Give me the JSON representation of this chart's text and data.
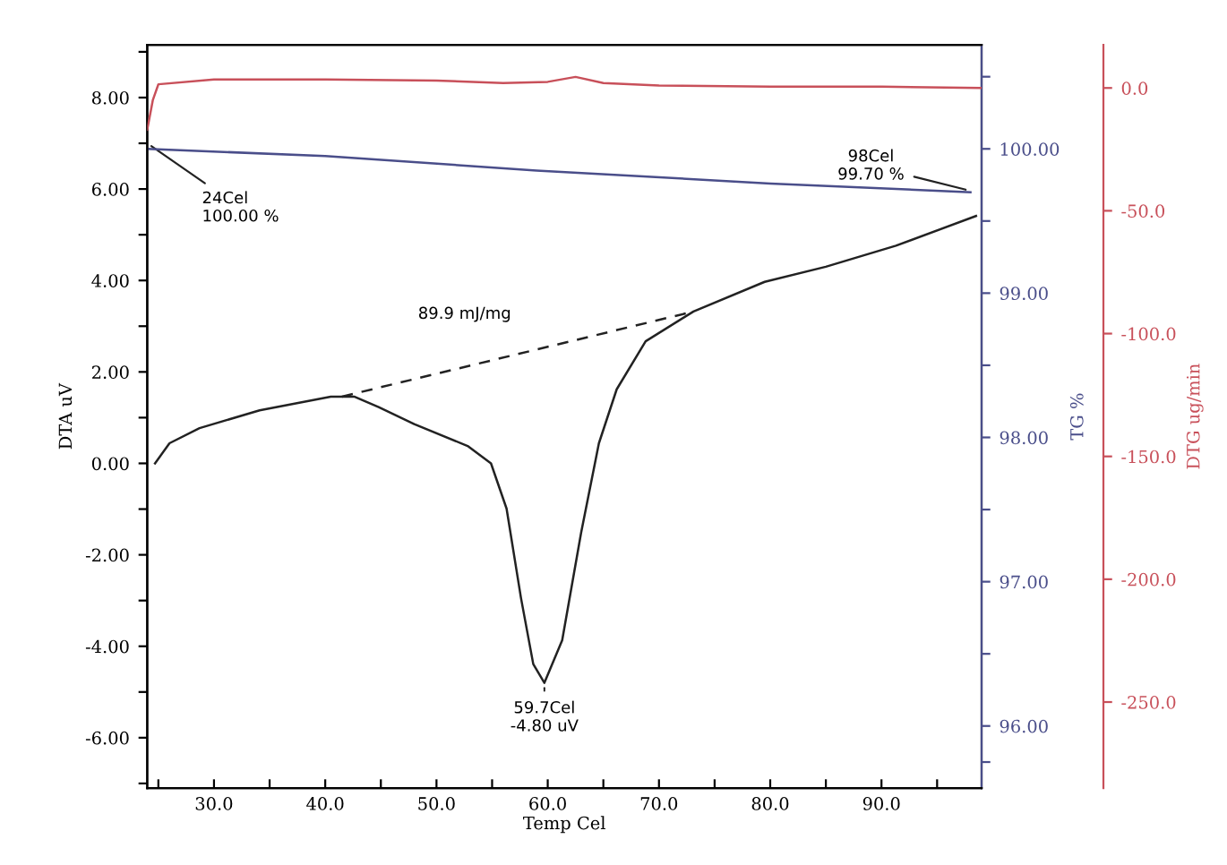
{
  "chart_data": {
    "type": "line",
    "xlabel": "Temp Cel",
    "ylabel": "DTA uV",
    "y2label": "TG %",
    "y3label": "DTG ug/min",
    "xlim": [
      24,
      99
    ],
    "xticks": [
      {
        "value": 25,
        "label": null
      },
      {
        "value": 30,
        "label": "30.0"
      },
      {
        "value": 35,
        "label": null
      },
      {
        "value": 40,
        "label": "40.0"
      },
      {
        "value": 45,
        "label": null
      },
      {
        "value": 50,
        "label": "50.0"
      },
      {
        "value": 55,
        "label": null
      },
      {
        "value": 60,
        "label": "60.0"
      },
      {
        "value": 65,
        "label": null
      },
      {
        "value": 70,
        "label": "70.0"
      },
      {
        "value": 75,
        "label": null
      },
      {
        "value": 80,
        "label": "80.0"
      },
      {
        "value": 85,
        "label": null
      },
      {
        "value": 90,
        "label": "90.0"
      },
      {
        "value": 95,
        "label": null
      }
    ],
    "ylim": [
      -7.1,
      9.15
    ],
    "yticks": [
      {
        "value": -7,
        "label": null
      },
      {
        "value": -6,
        "label": "-6.00"
      },
      {
        "value": -5,
        "label": null
      },
      {
        "value": -4,
        "label": "-4.00"
      },
      {
        "value": -3,
        "label": null
      },
      {
        "value": -2,
        "label": "-2.00"
      },
      {
        "value": -1,
        "label": null
      },
      {
        "value": 0,
        "label": "0.00"
      },
      {
        "value": 1,
        "label": null
      },
      {
        "value": 2,
        "label": "2.00"
      },
      {
        "value": 3,
        "label": null
      },
      {
        "value": 4,
        "label": "4.00"
      },
      {
        "value": 5,
        "label": null
      },
      {
        "value": 6,
        "label": "6.00"
      },
      {
        "value": 7,
        "label": null
      },
      {
        "value": 8,
        "label": "8.00"
      },
      {
        "value": 9,
        "label": null
      }
    ],
    "y2lim": [
      95.57,
      100.72
    ],
    "y2ticks": [
      {
        "value": 95.75,
        "label": null
      },
      {
        "value": 96,
        "label": "96.00"
      },
      {
        "value": 96.5,
        "label": null
      },
      {
        "value": 97,
        "label": "97.00"
      },
      {
        "value": 97.5,
        "label": null
      },
      {
        "value": 98,
        "label": "98.00"
      },
      {
        "value": 98.5,
        "label": null
      },
      {
        "value": 99,
        "label": "99.00"
      },
      {
        "value": 99.5,
        "label": null
      },
      {
        "value": 100,
        "label": "100.00"
      },
      {
        "value": 100.5,
        "label": null
      }
    ],
    "y3lim": [
      -285,
      17.5
    ],
    "y3ticks": [
      {
        "value": -250,
        "label": "-250.0"
      },
      {
        "value": -200,
        "label": "-200.0"
      },
      {
        "value": -150,
        "label": "-150.0"
      },
      {
        "value": -100,
        "label": "-100.0"
      },
      {
        "value": -50,
        "label": "-50.0"
      },
      {
        "value": 0,
        "label": "0.0"
      }
    ],
    "series": [
      {
        "color": "#222222",
        "axis": "y",
        "line_style": "solid",
        "x": [
          24.7,
          26.0,
          28.7,
          34.1,
          40.5,
          42.6,
          44.8,
          48.0,
          52.8,
          54.9,
          56.3,
          57.6,
          58.7,
          59.7,
          61.3,
          63.0,
          64.6,
          66.2,
          68.8,
          73.1,
          79.5,
          85.0,
          91.3,
          98.5
        ],
        "values": [
          0.0,
          0.44,
          0.77,
          1.16,
          1.46,
          1.46,
          1.23,
          0.86,
          0.38,
          0.0,
          -0.99,
          -2.95,
          -4.39,
          -4.8,
          -3.87,
          -1.52,
          0.44,
          1.62,
          2.67,
          3.32,
          3.97,
          4.3,
          4.76,
          5.41
        ]
      },
      {
        "color": "#222222",
        "axis": "y",
        "line_style": "dashed",
        "x": [
          41.5,
          73.1
        ],
        "values": [
          1.46,
          3.32
        ]
      },
      {
        "color": "#4a4e8a",
        "axis": "y2",
        "line_style": "solid",
        "x": [
          24,
          40,
          59,
          80,
          98
        ],
        "values": [
          100.0,
          99.95,
          99.85,
          99.76,
          99.7
        ]
      },
      {
        "color": "#c8505a",
        "axis": "y3",
        "line_style": "solid",
        "x": [
          24,
          24.5,
          25,
          30,
          40,
          50,
          56,
          60,
          62.5,
          65,
          70,
          80,
          90,
          98.9
        ],
        "values": [
          -17,
          -5,
          1.5,
          3.5,
          3.5,
          3,
          2,
          2.5,
          4.5,
          2,
          1,
          0.5,
          0.5,
          0
        ]
      }
    ],
    "annotations": [
      {
        "text": "24Cel\n100.00 %",
        "x": 24,
        "y": 7.0
      },
      {
        "text": "98Cel\n99.70 %",
        "x": 98,
        "y": 5.96
      },
      {
        "text": "59.7Cel\n-4.80 uV",
        "x": 59.7,
        "y": -4.8
      },
      {
        "text": "89.9 mJ/mg",
        "x": 57,
        "y": 2.5
      }
    ],
    "grid": false,
    "legend": false
  }
}
